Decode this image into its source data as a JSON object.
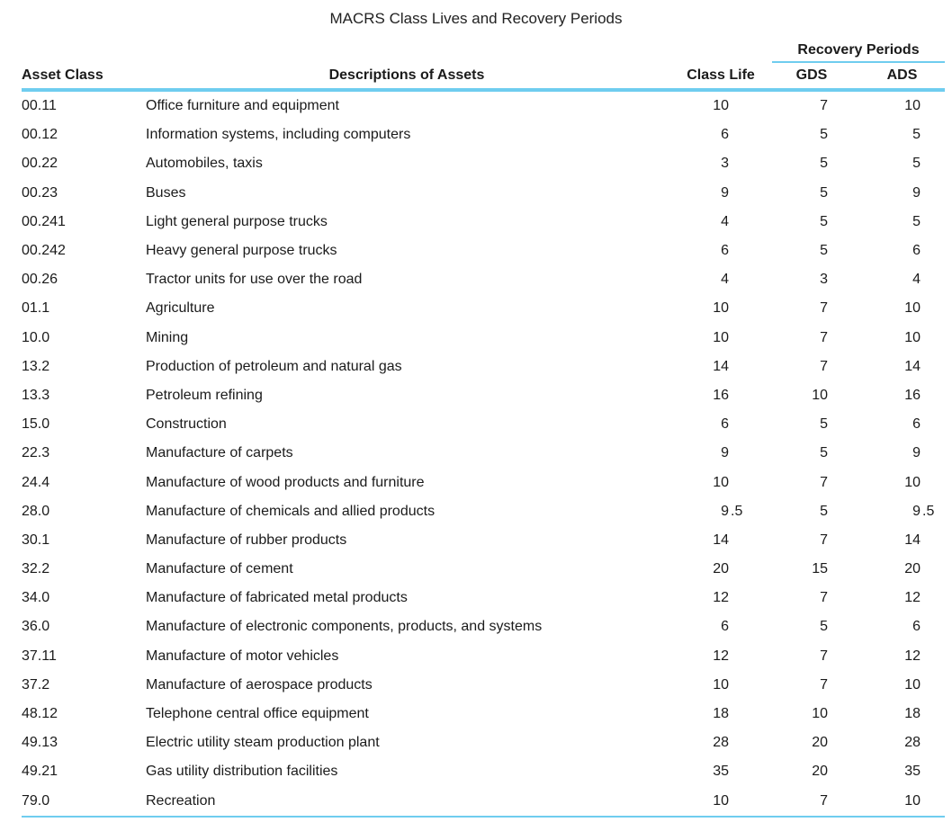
{
  "title": "MACRS Class Lives and Recovery Periods",
  "accent_color": "#6fcdef",
  "table": {
    "group_header": "Recovery Periods",
    "columns": {
      "asset_class": "Asset Class",
      "description": "Descriptions of Assets",
      "class_life": "Class Life",
      "gds": "GDS",
      "ads": "ADS"
    },
    "rows": [
      {
        "asset_class": "00.11",
        "description": "Office furniture and equipment",
        "class_life": "10",
        "gds": "7",
        "ads": "10"
      },
      {
        "asset_class": "00.12",
        "description": "Information systems, including computers",
        "class_life": "6",
        "gds": "5",
        "ads": "5"
      },
      {
        "asset_class": "00.22",
        "description": "Automobiles, taxis",
        "class_life": "3",
        "gds": "5",
        "ads": "5"
      },
      {
        "asset_class": "00.23",
        "description": "Buses",
        "class_life": "9",
        "gds": "5",
        "ads": "9"
      },
      {
        "asset_class": "00.241",
        "description": "Light general purpose trucks",
        "class_life": "4",
        "gds": "5",
        "ads": "5"
      },
      {
        "asset_class": "00.242",
        "description": "Heavy general purpose trucks",
        "class_life": "6",
        "gds": "5",
        "ads": "6"
      },
      {
        "asset_class": "00.26",
        "description": "Tractor units for use over the road",
        "class_life": "4",
        "gds": "3",
        "ads": "4"
      },
      {
        "asset_class": "01.1",
        "description": "Agriculture",
        "class_life": "10",
        "gds": "7",
        "ads": "10"
      },
      {
        "asset_class": "10.0",
        "description": "Mining",
        "class_life": "10",
        "gds": "7",
        "ads": "10"
      },
      {
        "asset_class": "13.2",
        "description": "Production of petroleum and natural gas",
        "class_life": "14",
        "gds": "7",
        "ads": "14"
      },
      {
        "asset_class": "13.3",
        "description": "Petroleum refining",
        "class_life": "16",
        "gds": "10",
        "ads": "16"
      },
      {
        "asset_class": "15.0",
        "description": "Construction",
        "class_life": "6",
        "gds": "5",
        "ads": "6"
      },
      {
        "asset_class": "22.3",
        "description": "Manufacture of carpets",
        "class_life": "9",
        "gds": "5",
        "ads": "9"
      },
      {
        "asset_class": "24.4",
        "description": "Manufacture of wood products and furniture",
        "class_life": "10",
        "gds": "7",
        "ads": "10"
      },
      {
        "asset_class": "28.0",
        "description": "Manufacture of chemicals and allied products",
        "class_life": "9.5",
        "gds": "5",
        "ads": "9.5"
      },
      {
        "asset_class": "30.1",
        "description": "Manufacture of rubber products",
        "class_life": "14",
        "gds": "7",
        "ads": "14"
      },
      {
        "asset_class": "32.2",
        "description": "Manufacture of cement",
        "class_life": "20",
        "gds": "15",
        "ads": "20"
      },
      {
        "asset_class": "34.0",
        "description": "Manufacture of fabricated metal products",
        "class_life": "12",
        "gds": "7",
        "ads": "12"
      },
      {
        "asset_class": "36.0",
        "description": "Manufacture of electronic components, products, and systems",
        "class_life": "6",
        "gds": "5",
        "ads": "6"
      },
      {
        "asset_class": "37.11",
        "description": "Manufacture of motor vehicles",
        "class_life": "12",
        "gds": "7",
        "ads": "12"
      },
      {
        "asset_class": "37.2",
        "description": "Manufacture of aerospace products",
        "class_life": "10",
        "gds": "7",
        "ads": "10"
      },
      {
        "asset_class": "48.12",
        "description": "Telephone central office equipment",
        "class_life": "18",
        "gds": "10",
        "ads": "18"
      },
      {
        "asset_class": "49.13",
        "description": "Electric utility steam production plant",
        "class_life": "28",
        "gds": "20",
        "ads": "28"
      },
      {
        "asset_class": "49.21",
        "description": "Gas utility distribution facilities",
        "class_life": "35",
        "gds": "20",
        "ads": "35"
      },
      {
        "asset_class": "79.0",
        "description": "Recreation",
        "class_life": "10",
        "gds": "7",
        "ads": "10"
      }
    ]
  }
}
